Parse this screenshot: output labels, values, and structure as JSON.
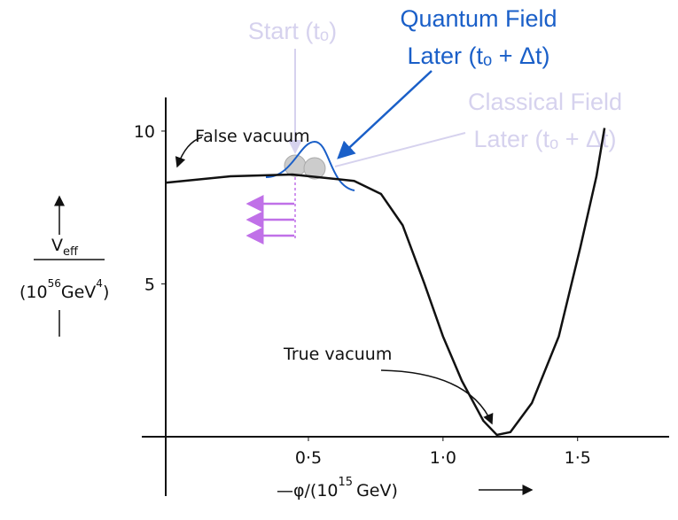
{
  "chart_data": {
    "type": "line",
    "x": [
      -0.03,
      0.21,
      0.44,
      0.67,
      0.77,
      0.85,
      0.93,
      1.0,
      1.07,
      1.15,
      1.2,
      1.25,
      1.33,
      1.43,
      1.51,
      1.57,
      1.6
    ],
    "series": [
      {
        "color": "#111111",
        "values": [
          8.31,
          8.52,
          8.58,
          8.37,
          7.94,
          6.92,
          5.03,
          3.28,
          1.83,
          0.52,
          0.06,
          0.15,
          1.1,
          3.28,
          6.19,
          8.52,
          10.1
        ]
      }
    ],
    "xlim": [
      -0.03,
      1.84
    ],
    "ylim": [
      0,
      11.1
    ],
    "xticks": [
      {
        "value": 0.5,
        "label": "0·5"
      },
      {
        "value": 1.0,
        "label": "1·0"
      },
      {
        "value": 1.5,
        "label": "1·5"
      }
    ],
    "yticks": [
      5,
      10
    ],
    "xlabel": {
      "prefix": "—φ/(10",
      "exp": "15",
      "suffix": "GeV)"
    },
    "ylabel": {
      "main": "V",
      "sub": "eff",
      "open": "(10",
      "exp": "56",
      "unit": "GeV",
      "exp2": "4",
      "close": ")"
    },
    "annotations": {
      "false_vacuum": "False vacuum",
      "true_vacuum": "True vacuum",
      "start": "Start (tₒ)",
      "quantum_1": "Quantum Field",
      "quantum_2": "Later (tₒ + Δt)",
      "classical_1": "Classical Field",
      "classical_2": "Later (tₒ + Δt)"
    }
  }
}
